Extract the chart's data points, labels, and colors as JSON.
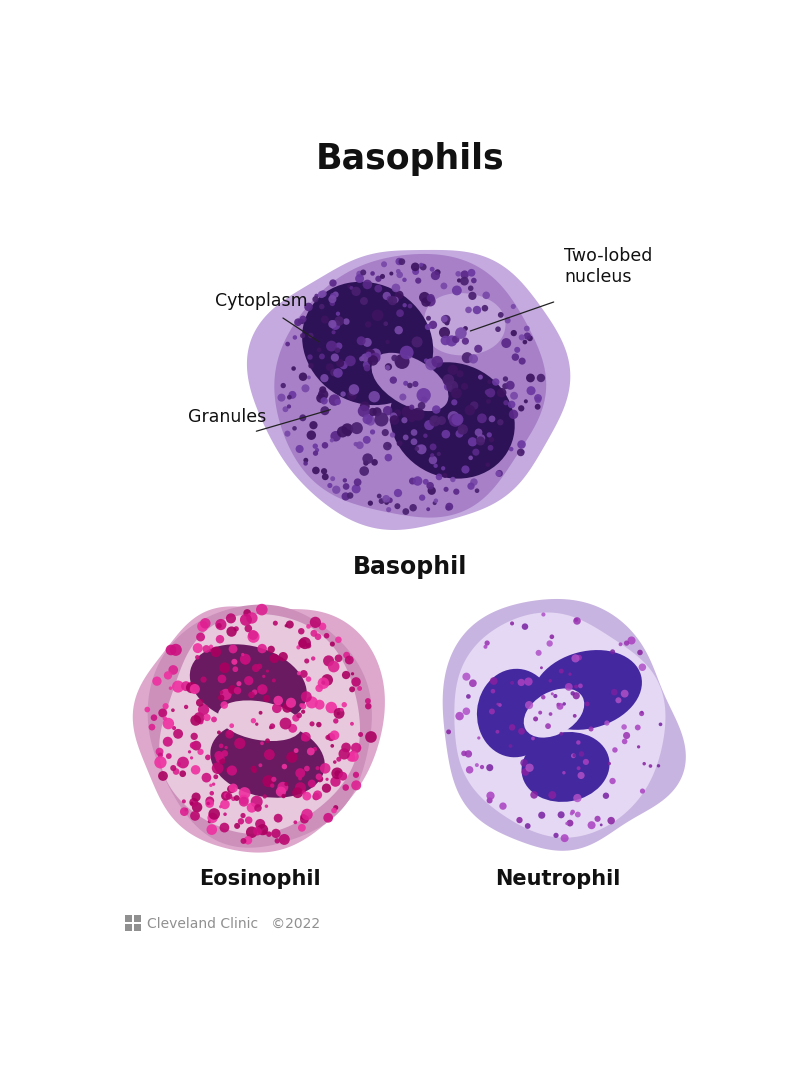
{
  "title": "Basophils",
  "background_color": "#ffffff",
  "basophil_label": "Basophil",
  "eosinophil_label": "Eosinophil",
  "neutrophil_label": "Neutrophil",
  "cytoplasm_label": "Cytoplasm",
  "nucleus_label": "Two-lobed\nnucleus",
  "granules_label": "Granules",
  "cleveland_label": "Cleveland Clinic   ©2022",
  "basophil_cell_outer": "#c8aee0",
  "basophil_cell_mid": "#b898d0",
  "basophil_cell_inner": "#9a78c0",
  "basophil_nucleus_dark": "#2e1255",
  "basophil_nucleus_mid": "#3d1a70",
  "basophil_granule_colors": [
    "#5a2888",
    "#6a38a0",
    "#4a2070",
    "#7848a8",
    "#3d1460"
  ],
  "eosinophil_cell_outer": "#dda0cc",
  "eosinophil_cell_mid": "#cc88bb",
  "eosinophil_cell_inner": "#e8c0d8",
  "eosinophil_nucleus": "#6a1858",
  "eosinophil_granule_colors": [
    "#cc1080",
    "#dd2090",
    "#bb0870",
    "#ee30a0",
    "#aa0060"
  ],
  "neutrophil_cell_outer": "#c8b0e0",
  "neutrophil_cell_inner": "#e0d0f0",
  "neutrophil_nucleus": "#4a30a0",
  "neutrophil_granule_colors": [
    "#9930b0",
    "#8820a0",
    "#aa40c0",
    "#7720a0",
    "#b050c8"
  ]
}
